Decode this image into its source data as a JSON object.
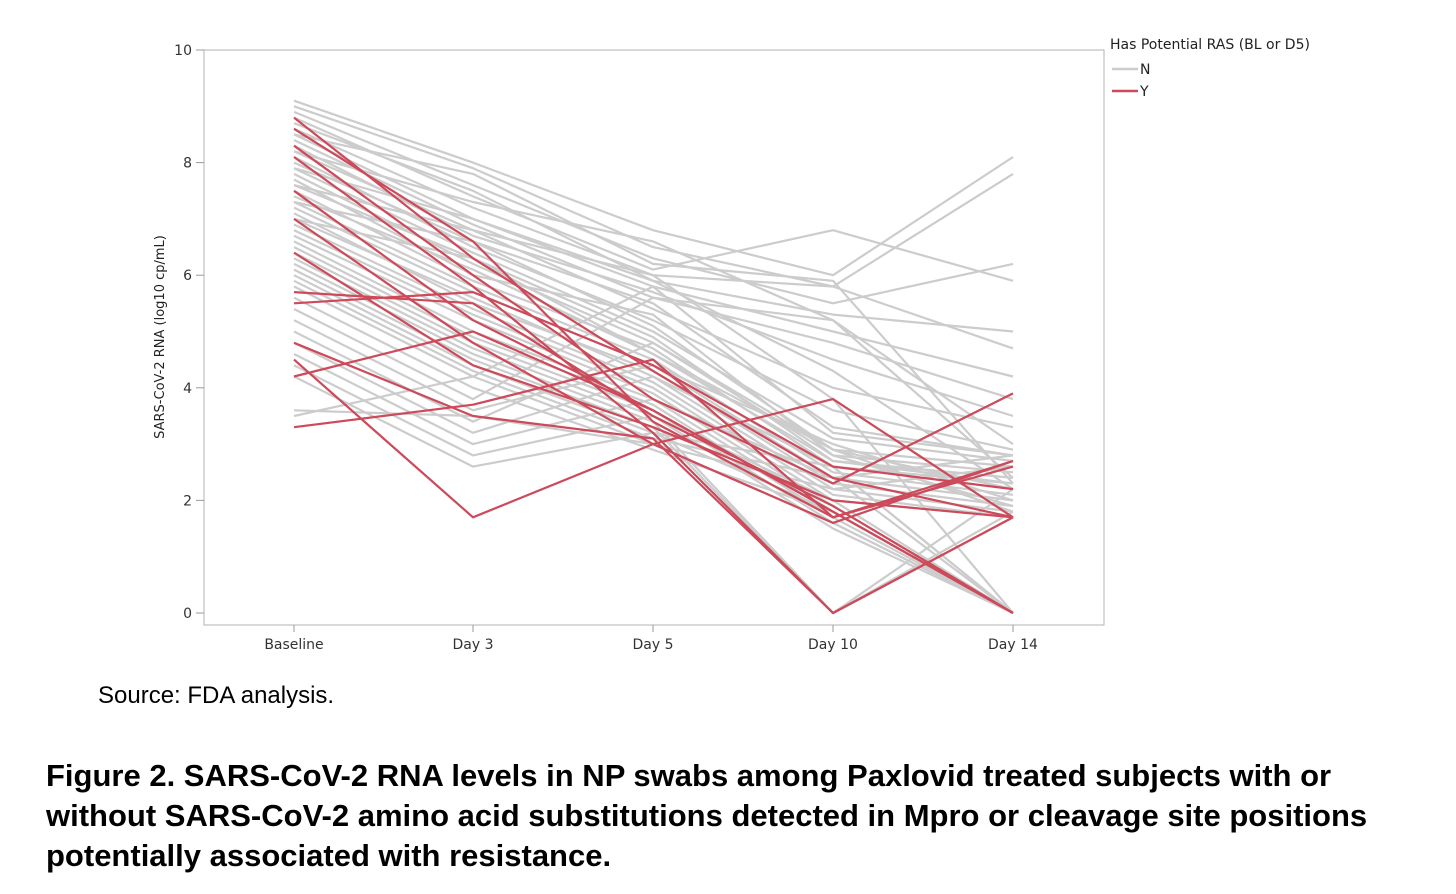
{
  "chart_data": {
    "type": "line",
    "categories": [
      "Baseline",
      "Day 3",
      "Day 5",
      "Day 10",
      "Day 14"
    ],
    "ylabel": "SARS-CoV-2 RNA (log10 cp/mL)",
    "xlabel": "",
    "ylim": [
      0,
      10
    ],
    "yticks": [
      "0",
      "2",
      "4",
      "6",
      "8",
      "10"
    ],
    "grid": false,
    "legend": {
      "title": "Has Potential RAS (BL or D5)",
      "position": "top-right",
      "entries": [
        {
          "label": "N",
          "color": "#cccccc"
        },
        {
          "label": "Y",
          "color": "#cc4a5a"
        }
      ]
    },
    "series": [
      {
        "group": "N",
        "values": [
          9.1,
          8.0,
          6.8,
          6.0,
          8.1
        ]
      },
      {
        "group": "N",
        "values": [
          9.0,
          7.9,
          6.5,
          5.8,
          7.8
        ]
      },
      {
        "group": "N",
        "values": [
          8.9,
          7.6,
          6.3,
          5.5,
          6.2
        ]
      },
      {
        "group": "N",
        "values": [
          8.8,
          7.4,
          6.1,
          6.8,
          5.9
        ]
      },
      {
        "group": "N",
        "values": [
          8.7,
          7.5,
          5.9,
          5.3,
          5.0
        ]
      },
      {
        "group": "N",
        "values": [
          8.6,
          7.2,
          6.0,
          5.8,
          4.7
        ]
      },
      {
        "group": "N",
        "values": [
          8.5,
          7.0,
          5.8,
          5.0,
          4.2
        ]
      },
      {
        "group": "N",
        "values": [
          8.4,
          6.9,
          5.6,
          4.8,
          3.8
        ]
      },
      {
        "group": "N",
        "values": [
          8.3,
          6.7,
          5.7,
          4.5,
          3.5
        ]
      },
      {
        "group": "N",
        "values": [
          8.2,
          6.8,
          5.4,
          4.0,
          3.3
        ]
      },
      {
        "group": "N",
        "values": [
          8.1,
          6.5,
          5.2,
          3.6,
          2.9
        ]
      },
      {
        "group": "N",
        "values": [
          8.0,
          6.6,
          5.5,
          3.3,
          2.8
        ]
      },
      {
        "group": "N",
        "values": [
          7.9,
          6.4,
          5.0,
          3.1,
          2.7
        ]
      },
      {
        "group": "N",
        "values": [
          7.8,
          6.2,
          4.8,
          2.9,
          2.6
        ]
      },
      {
        "group": "N",
        "values": [
          7.7,
          6.0,
          5.3,
          2.8,
          2.5
        ]
      },
      {
        "group": "N",
        "values": [
          7.6,
          6.3,
          4.9,
          2.7,
          2.4
        ]
      },
      {
        "group": "N",
        "values": [
          7.5,
          5.9,
          4.7,
          2.6,
          2.3
        ]
      },
      {
        "group": "N",
        "values": [
          7.4,
          6.1,
          4.6,
          2.9,
          2.2
        ]
      },
      {
        "group": "N",
        "values": [
          7.3,
          5.8,
          4.5,
          2.5,
          2.1
        ]
      },
      {
        "group": "N",
        "values": [
          7.2,
          5.7,
          4.4,
          2.4,
          2.0
        ]
      },
      {
        "group": "N",
        "values": [
          7.1,
          5.5,
          4.3,
          2.3,
          1.9
        ]
      },
      {
        "group": "N",
        "values": [
          7.0,
          5.6,
          4.2,
          2.2,
          1.8
        ]
      },
      {
        "group": "N",
        "values": [
          6.9,
          5.4,
          4.1,
          2.1,
          1.7
        ]
      },
      {
        "group": "N",
        "values": [
          6.8,
          5.3,
          4.0,
          2.0,
          0.0
        ]
      },
      {
        "group": "N",
        "values": [
          6.7,
          5.2,
          3.9,
          1.9,
          0.0
        ]
      },
      {
        "group": "N",
        "values": [
          6.6,
          5.0,
          3.8,
          1.8,
          0.0
        ]
      },
      {
        "group": "N",
        "values": [
          6.5,
          4.9,
          3.7,
          1.7,
          0.0
        ]
      },
      {
        "group": "N",
        "values": [
          6.4,
          4.8,
          3.6,
          1.6,
          0.0
        ]
      },
      {
        "group": "N",
        "values": [
          6.3,
          4.7,
          3.5,
          1.5,
          0.0
        ]
      },
      {
        "group": "N",
        "values": [
          6.2,
          4.6,
          3.4,
          0.0,
          2.2
        ]
      },
      {
        "group": "N",
        "values": [
          6.1,
          4.5,
          3.3,
          0.0,
          1.8
        ]
      },
      {
        "group": "N",
        "values": [
          6.0,
          4.4,
          3.2,
          2.6,
          0.0
        ]
      },
      {
        "group": "N",
        "values": [
          5.9,
          4.3,
          3.1,
          2.4,
          2.8
        ]
      },
      {
        "group": "N",
        "values": [
          5.8,
          4.2,
          3.0,
          2.2,
          2.6
        ]
      },
      {
        "group": "N",
        "values": [
          5.6,
          4.0,
          2.9,
          1.8,
          0.0
        ]
      },
      {
        "group": "N",
        "values": [
          5.4,
          3.8,
          5.6,
          5.2,
          3.0
        ]
      },
      {
        "group": "N",
        "values": [
          5.2,
          3.6,
          4.4,
          3.0,
          2.0
        ]
      },
      {
        "group": "N",
        "values": [
          5.0,
          3.4,
          4.8,
          2.8,
          1.9
        ]
      },
      {
        "group": "N",
        "values": [
          4.8,
          3.2,
          4.2,
          2.6,
          0.0
        ]
      },
      {
        "group": "N",
        "values": [
          4.6,
          3.0,
          3.8,
          2.4,
          0.0
        ]
      },
      {
        "group": "N",
        "values": [
          4.4,
          2.8,
          3.5,
          2.0,
          1.7
        ]
      },
      {
        "group": "N",
        "values": [
          4.2,
          2.6,
          3.2,
          1.8,
          0.0
        ]
      },
      {
        "group": "N",
        "values": [
          3.6,
          3.5,
          3.0,
          1.6,
          0.0
        ]
      },
      {
        "group": "N",
        "values": [
          3.5,
          4.2,
          5.8,
          3.2,
          2.8
        ]
      },
      {
        "group": "N",
        "values": [
          8.5,
          7.8,
          6.2,
          5.9,
          2.3
        ]
      },
      {
        "group": "N",
        "values": [
          8.2,
          7.3,
          6.6,
          5.2,
          2.4
        ]
      },
      {
        "group": "N",
        "values": [
          7.9,
          7.0,
          5.9,
          4.3,
          2.2
        ]
      },
      {
        "group": "N",
        "values": [
          7.6,
          6.8,
          6.0,
          3.8,
          0.0
        ]
      },
      {
        "group": "N",
        "values": [
          7.3,
          6.6,
          5.1,
          2.9,
          1.8
        ]
      },
      {
        "group": "N",
        "values": [
          7.0,
          6.3,
          4.6,
          2.7,
          2.3
        ]
      },
      {
        "group": "Y",
        "values": [
          8.8,
          6.3,
          4.3,
          2.4,
          1.7
        ]
      },
      {
        "group": "Y",
        "values": [
          8.6,
          6.6,
          3.4,
          1.7,
          2.6
        ]
      },
      {
        "group": "Y",
        "values": [
          8.3,
          6.0,
          3.8,
          2.3,
          3.9
        ]
      },
      {
        "group": "Y",
        "values": [
          8.1,
          5.8,
          3.2,
          0.0,
          1.7
        ]
      },
      {
        "group": "Y",
        "values": [
          7.5,
          5.2,
          3.6,
          1.8,
          0.0
        ]
      },
      {
        "group": "Y",
        "values": [
          7.0,
          4.8,
          3.0,
          1.6,
          2.7
        ]
      },
      {
        "group": "Y",
        "values": [
          6.4,
          4.4,
          3.3,
          2.0,
          1.7
        ]
      },
      {
        "group": "Y",
        "values": [
          5.7,
          5.5,
          3.5,
          1.9,
          0.0
        ]
      },
      {
        "group": "Y",
        "values": [
          5.5,
          5.7,
          4.4,
          2.6,
          2.2
        ]
      },
      {
        "group": "Y",
        "values": [
          4.8,
          3.5,
          3.1,
          0.0,
          1.7
        ]
      },
      {
        "group": "Y",
        "values": [
          4.5,
          1.7,
          3.0,
          3.8,
          1.7
        ]
      },
      {
        "group": "Y",
        "values": [
          4.2,
          5.0,
          3.6,
          1.8,
          0.0
        ]
      },
      {
        "group": "Y",
        "values": [
          3.3,
          3.7,
          4.5,
          1.7,
          2.7
        ]
      }
    ]
  },
  "source_text": "Source: FDA analysis.",
  "caption": "Figure 2. SARS-CoV-2 RNA levels in NP swabs among Paxlovid treated subjects with or without SARS-CoV-2 amino acid substitutions detected in Mpro or cleavage site positions potentially associated with resistance."
}
